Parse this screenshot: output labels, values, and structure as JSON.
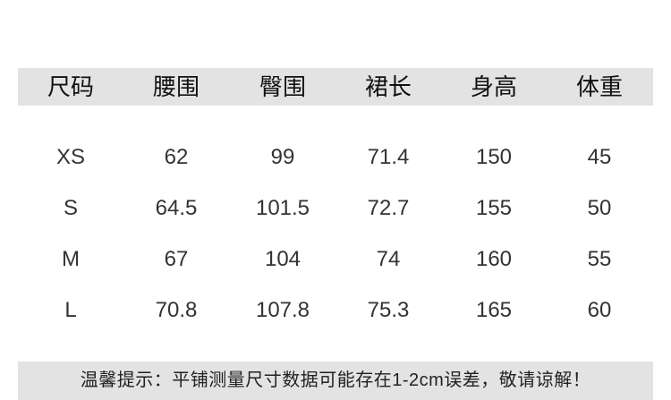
{
  "table": {
    "header": [
      "尺码",
      "腰围",
      "臀围",
      "裙长",
      "身高",
      "体重"
    ],
    "rows": [
      [
        "XS",
        "62",
        "99",
        "71.4",
        "150",
        "45"
      ],
      [
        "S",
        "64.5",
        "101.5",
        "72.7",
        "155",
        "50"
      ],
      [
        "M",
        "67",
        "104",
        "74",
        "160",
        "55"
      ],
      [
        "L",
        "70.8",
        "107.8",
        "75.3",
        "165",
        "60"
      ]
    ]
  },
  "note": "温馨提示：平铺测量尺寸数据可能存在1-2cm误差，敬请谅解！"
}
